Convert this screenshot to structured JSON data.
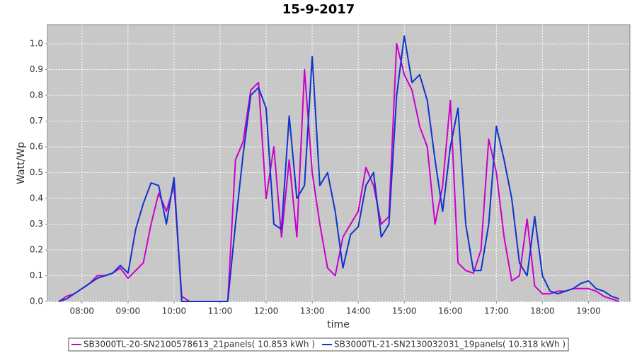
{
  "chart_data": {
    "type": "line",
    "title": "15-9-2017",
    "x_label": "time",
    "y_label": "Watt/Wp",
    "x": [
      "07:30",
      "07:40",
      "07:50",
      "08:00",
      "08:10",
      "08:20",
      "08:30",
      "08:40",
      "08:50",
      "09:00",
      "09:10",
      "09:20",
      "09:30",
      "09:40",
      "09:50",
      "10:00",
      "10:10",
      "10:20",
      "10:30",
      "10:40",
      "10:50",
      "11:00",
      "11:10",
      "11:20",
      "11:30",
      "11:40",
      "11:50",
      "12:00",
      "12:10",
      "12:20",
      "12:30",
      "12:40",
      "12:50",
      "13:00",
      "13:10",
      "13:20",
      "13:30",
      "13:40",
      "13:50",
      "14:00",
      "14:10",
      "14:20",
      "14:30",
      "14:40",
      "14:50",
      "15:00",
      "15:10",
      "15:20",
      "15:30",
      "15:40",
      "15:50",
      "16:00",
      "16:10",
      "16:20",
      "16:30",
      "16:40",
      "16:50",
      "17:00",
      "17:10",
      "17:20",
      "17:30",
      "17:40",
      "17:50",
      "18:00",
      "18:10",
      "18:20",
      "18:30",
      "18:40",
      "18:50",
      "19:00",
      "19:10",
      "19:20",
      "19:30",
      "19:40"
    ],
    "series": [
      {
        "name": "SB3000TL-20-SN2100578613_21panels( 10.853 kWh )",
        "color": "#cc00cc",
        "values": [
          0.0,
          0.02,
          0.03,
          0.05,
          0.07,
          0.1,
          0.1,
          0.11,
          0.13,
          0.09,
          0.12,
          0.15,
          0.3,
          0.42,
          0.35,
          0.45,
          0.02,
          0.0,
          0.0,
          0.0,
          0.0,
          0.0,
          0.0,
          0.55,
          0.62,
          0.82,
          0.85,
          0.4,
          0.6,
          0.25,
          0.55,
          0.25,
          0.9,
          0.5,
          0.3,
          0.13,
          0.1,
          0.25,
          0.3,
          0.35,
          0.52,
          0.45,
          0.3,
          0.33,
          1.0,
          0.88,
          0.82,
          0.68,
          0.6,
          0.3,
          0.45,
          0.78,
          0.15,
          0.12,
          0.11,
          0.2,
          0.63,
          0.5,
          0.25,
          0.08,
          0.1,
          0.32,
          0.06,
          0.03,
          0.03,
          0.04,
          0.04,
          0.05,
          0.05,
          0.05,
          0.04,
          0.02,
          0.01,
          0.0
        ]
      },
      {
        "name": "SB3000TL-21-SN2130032031_19panels( 10.318 kWh )",
        "color": "#1133cc",
        "values": [
          0.0,
          0.01,
          0.03,
          0.05,
          0.07,
          0.09,
          0.1,
          0.11,
          0.14,
          0.11,
          0.28,
          0.38,
          0.46,
          0.45,
          0.3,
          0.48,
          0.0,
          0.0,
          0.0,
          0.0,
          0.0,
          0.0,
          0.0,
          0.3,
          0.57,
          0.8,
          0.83,
          0.75,
          0.3,
          0.28,
          0.72,
          0.4,
          0.45,
          0.95,
          0.45,
          0.5,
          0.35,
          0.13,
          0.26,
          0.29,
          0.45,
          0.5,
          0.25,
          0.3,
          0.8,
          1.03,
          0.85,
          0.88,
          0.78,
          0.55,
          0.35,
          0.6,
          0.75,
          0.3,
          0.12,
          0.12,
          0.3,
          0.68,
          0.55,
          0.4,
          0.15,
          0.1,
          0.33,
          0.1,
          0.04,
          0.03,
          0.04,
          0.05,
          0.07,
          0.08,
          0.05,
          0.04,
          0.02,
          0.01
        ]
      }
    ],
    "xlim": [
      "07:15",
      "19:54"
    ],
    "xticks": [
      "08:00",
      "09:00",
      "10:00",
      "11:00",
      "12:00",
      "13:00",
      "14:00",
      "15:00",
      "16:00",
      "17:00",
      "18:00",
      "19:00"
    ],
    "ylim": [
      0,
      1.074
    ],
    "yticks": [
      {
        "value": 0,
        "label": "0.0"
      },
      0.1,
      0.2,
      0.3,
      0.4,
      0.5,
      0.6,
      0.7,
      0.8,
      0.9,
      {
        "value": 1,
        "label": "1.0"
      }
    ],
    "grid": true,
    "legend": "bottom"
  }
}
